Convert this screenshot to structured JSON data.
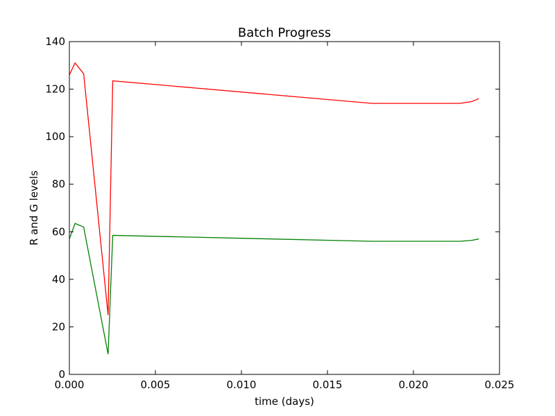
{
  "chart_data": {
    "type": "line",
    "title": "Batch Progress",
    "xlabel": "time (days)",
    "ylabel": "R and G levels",
    "xlim": [
      0.0,
      0.025
    ],
    "ylim": [
      0,
      140
    ],
    "xticks": [
      0.0,
      0.005,
      0.01,
      0.015,
      0.02,
      0.025
    ],
    "xtick_labels": [
      "0.000",
      "0.005",
      "0.010",
      "0.015",
      "0.020",
      "0.025"
    ],
    "yticks": [
      0,
      20,
      40,
      60,
      80,
      100,
      120,
      140
    ],
    "ytick_labels": [
      "0",
      "20",
      "40",
      "60",
      "80",
      "100",
      "120",
      "140"
    ],
    "grid": false,
    "legend": "none",
    "series": [
      {
        "color": "#ff0000",
        "x": [
          0.0,
          0.00033,
          0.00083,
          0.00225,
          0.00252,
          0.0176,
          0.0227,
          0.0234,
          0.0238
        ],
        "y": [
          126,
          131,
          126.5,
          25,
          123.5,
          114,
          114,
          114.8,
          116
        ]
      },
      {
        "color": "#008000",
        "x": [
          0.0,
          0.00033,
          0.00083,
          0.00225,
          0.00252,
          0.0176,
          0.0227,
          0.0234,
          0.0238
        ],
        "y": [
          57,
          63.5,
          62,
          8.5,
          58.5,
          56,
          56,
          56.4,
          57
        ]
      }
    ]
  }
}
